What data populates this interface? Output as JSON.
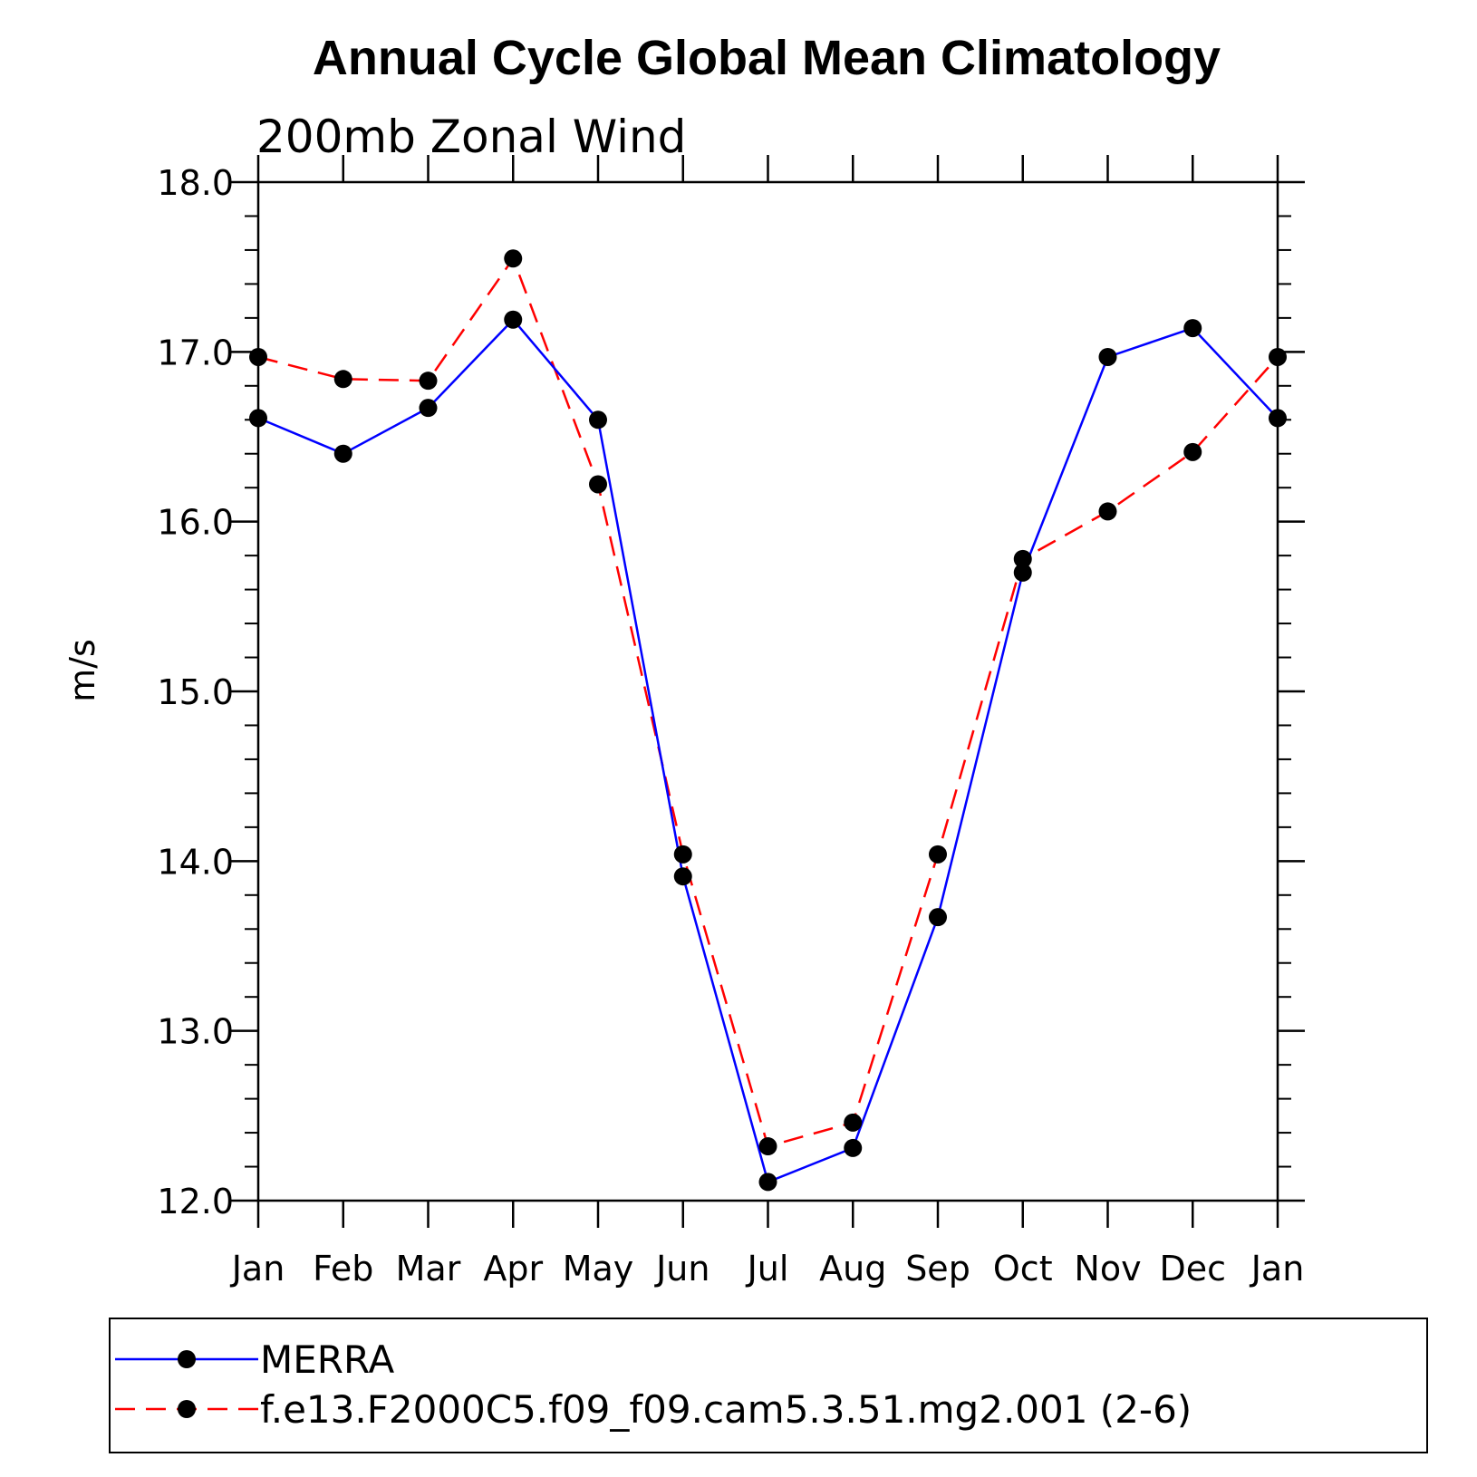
{
  "chart_data": {
    "type": "line",
    "title": "Annual Cycle Global Mean Climatology",
    "subtitle": "200mb Zonal Wind",
    "xlabel": "",
    "ylabel": "m/s",
    "categories": [
      "Jan",
      "Feb",
      "Mar",
      "Apr",
      "May",
      "Jun",
      "Jul",
      "Aug",
      "Sep",
      "Oct",
      "Nov",
      "Dec",
      "Jan"
    ],
    "ylim": [
      12.0,
      18.0
    ],
    "yticks": [
      "12.0",
      "13.0",
      "14.0",
      "15.0",
      "16.0",
      "17.0",
      "18.0"
    ],
    "grid": false,
    "legend_position": "bottom",
    "series": [
      {
        "name": "MERRA",
        "color": "#0000ff",
        "dash": "solid",
        "values": [
          16.61,
          16.4,
          16.67,
          17.19,
          16.6,
          13.91,
          12.11,
          12.31,
          13.67,
          15.7,
          16.97,
          17.14,
          16.61
        ]
      },
      {
        "name": "f.e13.F2000C5.f09_f09.cam5.3.51.mg2.001 (2-6)",
        "color": "#ff0000",
        "dash": "dashed",
        "values": [
          16.97,
          16.84,
          16.83,
          17.55,
          16.22,
          14.04,
          12.32,
          12.46,
          14.04,
          15.78,
          16.06,
          16.41,
          16.97
        ]
      }
    ]
  }
}
